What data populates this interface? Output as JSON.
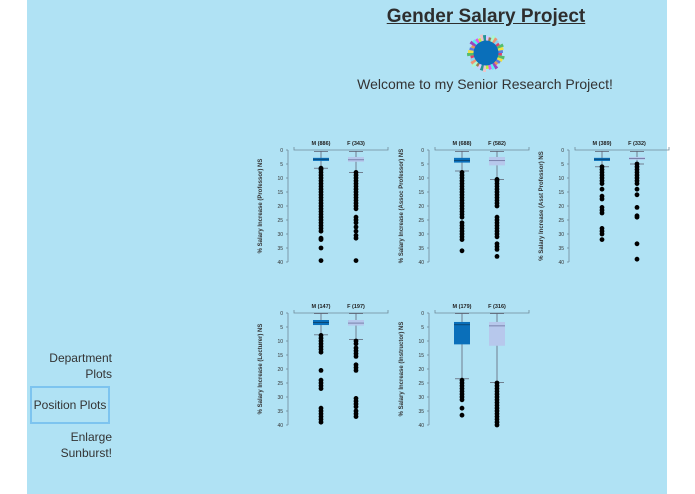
{
  "header": {
    "title": "Gender Salary Project",
    "welcome": "Welcome to my Senior Research Project!",
    "logo_icon": "sunburst-icon"
  },
  "nav": {
    "items": [
      {
        "label": "Department Plots",
        "line1": "Department",
        "line2": "Plots",
        "selected": false
      },
      {
        "label": "Position Plots",
        "selected": true
      },
      {
        "label": "Enlarge Sunburst!",
        "line1": "Enlarge",
        "line2": "Sunburst!",
        "selected": false
      }
    ]
  },
  "colors": {
    "page_bg": "#b0e2f4",
    "male_box": "#0a6fba",
    "female_box": "#b7c8ec",
    "outlier": "#000000",
    "axis": "#6f8a98",
    "nav_selected_border": "#7dc4ef"
  },
  "chart_data": [
    {
      "type": "box",
      "title": "Professor",
      "ylabel": "% Salary Increase (Professor) NS",
      "ylim": [
        0,
        40
      ],
      "yticks": [
        0,
        5,
        10,
        15,
        20,
        25,
        30,
        35,
        40
      ],
      "y_inverted": true,
      "categories": [
        "M (886)",
        "F (343)"
      ],
      "series": [
        {
          "name": "M",
          "n": 886,
          "whisker_low": 0.5,
          "q1": 2.8,
          "median": 3.3,
          "q3": 3.9,
          "whisker_high": 6.5,
          "outliers": [
            6.5,
            7,
            8,
            9,
            10,
            11,
            12,
            13,
            14,
            15,
            16,
            17,
            18,
            19,
            20,
            21,
            22,
            23,
            24,
            25,
            26,
            27,
            28,
            29,
            31.5,
            32,
            35,
            39.5
          ]
        },
        {
          "name": "F",
          "n": 343,
          "whisker_low": 0.5,
          "q1": 2.5,
          "median": 3.5,
          "q3": 4.2,
          "whisker_high": 8,
          "outliers": [
            8,
            9,
            10,
            11,
            12,
            13,
            14,
            15,
            16,
            17,
            18,
            19,
            20,
            21,
            24,
            25,
            26,
            27.5,
            29,
            30.5,
            31.5,
            39.5
          ]
        }
      ]
    },
    {
      "type": "box",
      "title": "Assoc Professor",
      "ylabel": "% Salary Increase (Assoc Professor) NS",
      "ylim": [
        0,
        40
      ],
      "yticks": [
        0,
        5,
        10,
        15,
        20,
        25,
        30,
        35,
        40
      ],
      "y_inverted": true,
      "categories": [
        "M (688)",
        "F (582)"
      ],
      "series": [
        {
          "name": "M",
          "n": 688,
          "whisker_low": 0.5,
          "q1": 2.8,
          "median": 3.7,
          "q3": 4.5,
          "whisker_high": 7.5,
          "outliers": [
            8,
            9,
            10,
            11,
            12,
            13,
            14,
            15,
            16,
            17,
            18,
            19,
            20,
            21,
            22,
            23,
            24,
            26,
            27,
            28,
            29,
            30,
            31,
            32,
            36
          ]
        },
        {
          "name": "F",
          "n": 582,
          "whisker_low": 0.5,
          "q1": 2.5,
          "median": 3.8,
          "q3": 5.5,
          "whisker_high": 10.5,
          "outliers": [
            10.5,
            11,
            12,
            13,
            14,
            15,
            16,
            17,
            18,
            19,
            20,
            24,
            25,
            26,
            27,
            28,
            29,
            30,
            31,
            33.5,
            34.5,
            35.5,
            38
          ]
        }
      ]
    },
    {
      "type": "box",
      "title": "Asst Professor",
      "ylabel": "% Salary Increase (Asst Professor) NS",
      "ylim": [
        0,
        40
      ],
      "yticks": [
        0,
        5,
        10,
        15,
        20,
        25,
        30,
        35,
        40
      ],
      "y_inverted": true,
      "categories": [
        "M (389)",
        "F (332)"
      ],
      "series": [
        {
          "name": "M",
          "n": 389,
          "whisker_low": 0.5,
          "q1": 2.8,
          "median": 3.3,
          "q3": 3.9,
          "whisker_high": 6,
          "outliers": [
            6,
            7,
            8,
            9,
            10,
            11,
            12,
            14,
            16.5,
            17.5,
            20.5,
            21.5,
            22.5,
            28,
            29,
            30,
            32
          ]
        },
        {
          "name": "F",
          "n": 332,
          "whisker_low": 0.5,
          "q1": 2.5,
          "median": 3,
          "q3": 3.5,
          "whisker_high": 5,
          "outliers": [
            5,
            6,
            7,
            8,
            9,
            10,
            11,
            12,
            14,
            16,
            20.5,
            23.5,
            24,
            33.5,
            39
          ]
        }
      ]
    },
    {
      "type": "box",
      "title": "Lecturer",
      "ylabel": "% Salary Increase (Lecturer) NS",
      "ylim": [
        0,
        40
      ],
      "yticks": [
        0,
        5,
        10,
        15,
        20,
        25,
        30,
        35,
        40
      ],
      "y_inverted": true,
      "categories": [
        "M (147)",
        "F (197)"
      ],
      "series": [
        {
          "name": "M",
          "n": 147,
          "whisker_low": 0.2,
          "q1": 2.5,
          "median": 3.4,
          "q3": 4.3,
          "whisker_high": 7.8,
          "outliers": [
            8,
            9,
            10,
            11,
            12,
            13,
            14,
            20.5,
            24,
            25,
            26,
            27,
            34,
            35,
            36,
            37,
            38,
            39
          ]
        },
        {
          "name": "F",
          "n": 197,
          "whisker_low": 0.2,
          "q1": 2.5,
          "median": 3.6,
          "q3": 4.5,
          "whisker_high": 9.5,
          "outliers": [
            10,
            11,
            12.5,
            13.5,
            14.5,
            15.5,
            18.5,
            19.5,
            20.5,
            30.5,
            31.5,
            32.5,
            33.5,
            35,
            36,
            37
          ]
        }
      ]
    },
    {
      "type": "box",
      "title": "Instructor",
      "ylabel": "% Salary Increase (Instructor) NS",
      "ylim": [
        0,
        40
      ],
      "yticks": [
        0,
        5,
        10,
        15,
        20,
        25,
        30,
        35,
        40
      ],
      "y_inverted": true,
      "categories": [
        "M (179)",
        "F (316)"
      ],
      "series": [
        {
          "name": "M",
          "n": 179,
          "whisker_low": 0.2,
          "q1": 3.2,
          "median": 4.2,
          "q3": 11.2,
          "whisker_high": 23.5,
          "outliers": [
            24,
            25,
            26,
            27,
            28,
            29,
            30,
            31,
            34,
            36.5
          ]
        },
        {
          "name": "F",
          "n": 316,
          "whisker_low": 0.2,
          "q1": 3.2,
          "median": 4.6,
          "q3": 11.7,
          "whisker_high": 24.8,
          "outliers": [
            25,
            26,
            27,
            28,
            29,
            30,
            31,
            32,
            33,
            34,
            35,
            36,
            37,
            38,
            39,
            40
          ]
        }
      ]
    }
  ]
}
